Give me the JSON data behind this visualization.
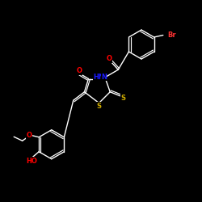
{
  "bg_color": "#000000",
  "bond_color": "#ffffff",
  "atom_colors": {
    "O": "#ff0000",
    "N": "#1a1aff",
    "S": "#ccaa00",
    "Br": "#ff3333",
    "C": "#ffffff",
    "H": "#ffffff"
  },
  "figsize": [
    2.5,
    2.5
  ],
  "dpi": 100,
  "lw": 1.0,
  "fontsize": 5.5
}
